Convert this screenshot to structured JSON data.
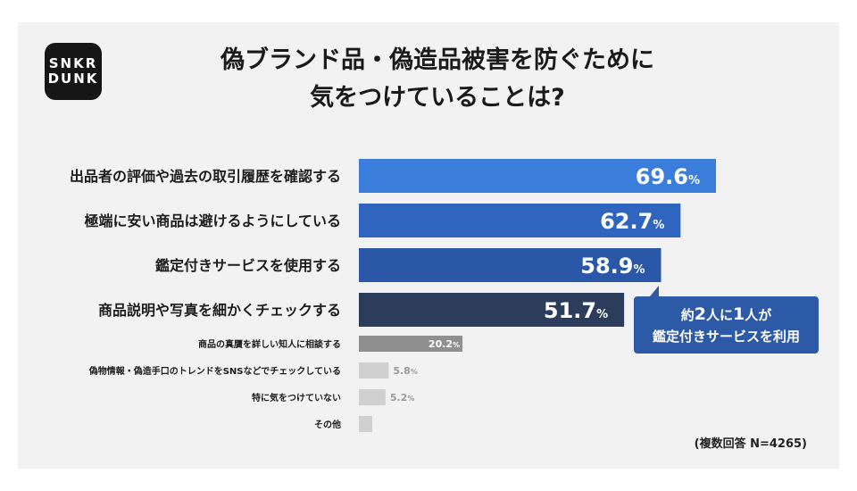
{
  "logo": {
    "line1": "SNKR",
    "line2": "DUNK"
  },
  "title": {
    "line1": "偽ブランド品・偽造品被害を防ぐために",
    "line2": "気をつけていることは?"
  },
  "chart_data": {
    "type": "bar",
    "orientation": "horizontal",
    "categories": [
      "出品者の評価や過去の取引履歴を確認する",
      "極端に安い商品は避けるようにしている",
      "鑑定付きサービスを使用する",
      "商品説明や写真を細かくチェックする",
      "商品の真贋を詳しい知人に相談する",
      "偽物情報・偽造手口のトレンドをSNSなどでチェックしている",
      "特に気をつけていない",
      "その他"
    ],
    "values": [
      69.6,
      62.7,
      58.9,
      51.7,
      20.2,
      5.8,
      5.2,
      null
    ],
    "value_labels": [
      "69.6",
      "62.7",
      "58.9",
      "51.7",
      "20.2",
      "5.8",
      "5.2",
      ""
    ],
    "unit": "%",
    "colors": [
      "#3b7ddb",
      "#2f65bf",
      "#2b57a8",
      "#2b3d5b",
      "#8f8f8f",
      "#d0d0d0",
      "#d0d0d0",
      "#d0d0d0"
    ],
    "xlim": [
      0,
      100
    ],
    "grid": false,
    "legend": "none"
  },
  "callout": {
    "pre1": "約",
    "num1": "2",
    "mid": "人に",
    "num2": "1",
    "post": "人が",
    "line2": "鑑定付きサービスを利用"
  },
  "note": "(複数回答 N=4265)"
}
